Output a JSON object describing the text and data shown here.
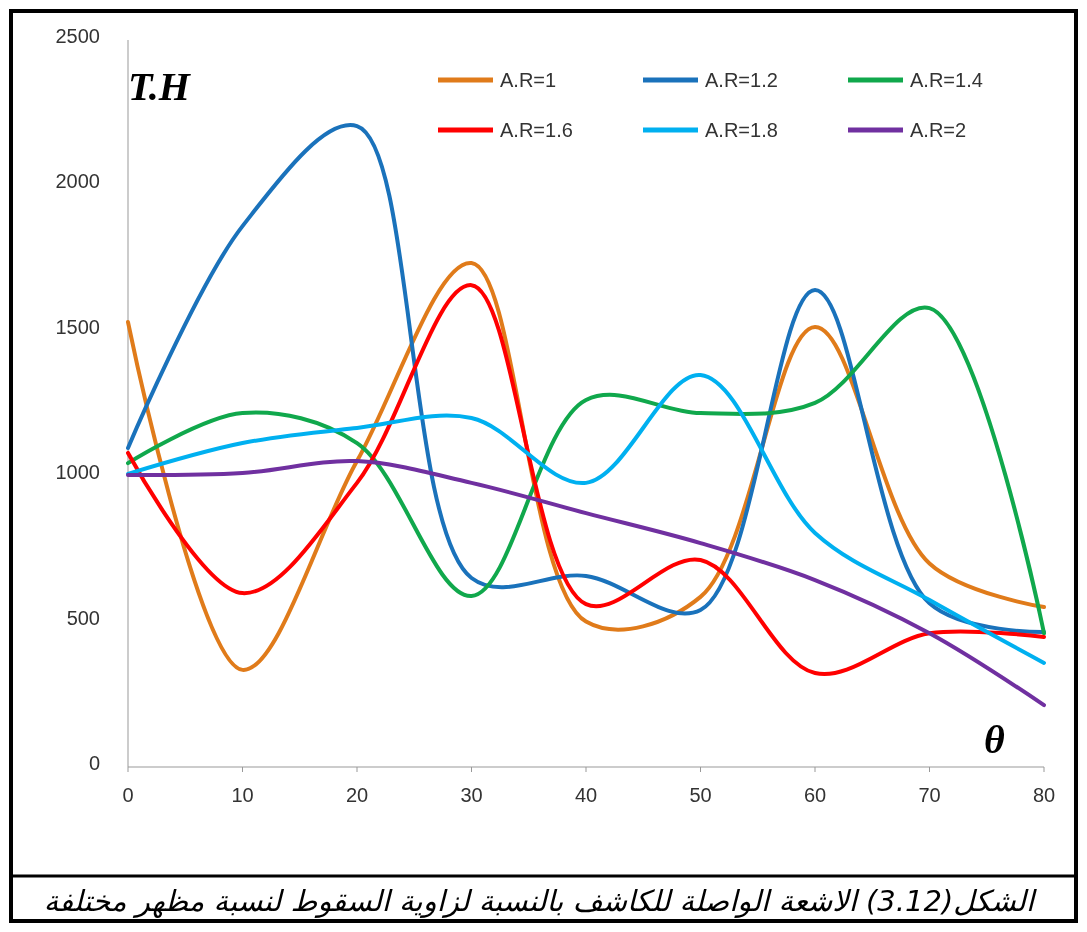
{
  "chart_data": {
    "type": "line",
    "xlabel": "θ",
    "ylabel": "T.H",
    "x": [
      0,
      10,
      20,
      30,
      40,
      50,
      60,
      70,
      80
    ],
    "xlim": [
      0,
      80
    ],
    "xticks": [
      0,
      10,
      20,
      30,
      40,
      50,
      60,
      70,
      80
    ],
    "ylim": [
      0,
      2500
    ],
    "yticks": [
      0,
      500,
      1000,
      1500,
      2000,
      2500
    ],
    "grid": false,
    "legend": "top right",
    "marker": "none",
    "line_style": "solid",
    "series": [
      {
        "name": "A.R=1",
        "color": "#e07b1a",
        "values": [
          1530,
          334,
          1052,
          1733,
          500,
          585,
          1513,
          700,
          550
        ]
      },
      {
        "name": "A.R=1.2",
        "color": "#1a72bb",
        "values": [
          1097,
          1860,
          2204,
          650,
          657,
          540,
          1640,
          563,
          464
        ]
      },
      {
        "name": "A.R=1.4",
        "color": "#10a84c",
        "values": [
          1045,
          1217,
          1114,
          588,
          1262,
          1217,
          1252,
          1578,
          460
        ]
      },
      {
        "name": "A.R=1.6",
        "color": "#ff0000",
        "values": [
          1080,
          598,
          977,
          1657,
          560,
          712,
          323,
          460,
          447
        ]
      },
      {
        "name": "A.R=1.8",
        "color": "#00b0f0",
        "values": [
          1008,
          1114,
          1166,
          1200,
          977,
          1348,
          805,
          574,
          358
        ]
      },
      {
        "name": "A.R=2",
        "color": "#7030a0",
        "values": [
          1004,
          1011,
          1052,
          977,
          873,
          770,
          643,
          460,
          213
        ]
      }
    ],
    "annotations": [
      "الشكل(3.12)  الاشعة الواصلة للكاشف بالنسبة لزاوية السقوط لنسبة مظهر مختلفة"
    ]
  }
}
